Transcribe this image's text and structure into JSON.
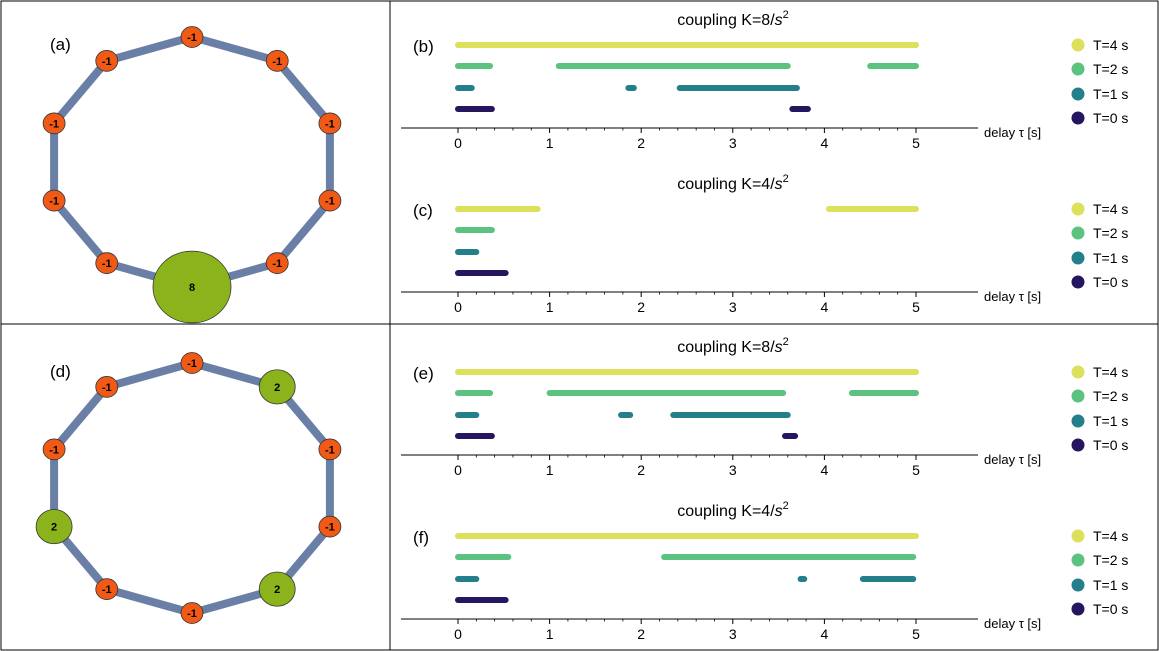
{
  "colors": {
    "T4": "#dde05a",
    "T2": "#5cc27f",
    "T1": "#23808a",
    "T0": "#261660",
    "edge": "#6a7fa6",
    "node_negative": "#f05a16",
    "node_positive": "#8bb31c",
    "node_stroke": "#333333",
    "frame": "#000000"
  },
  "panels": {
    "a": {
      "label": "(a)",
      "node_values": [
        "-1",
        "-1",
        "-1",
        "-1",
        "-1",
        "8",
        "-1",
        "-1",
        "-1",
        "-1"
      ]
    },
    "d": {
      "label": "(d)",
      "node_values": [
        "-1",
        "2",
        "-1",
        "-1",
        "2",
        "-1",
        "-1",
        "2",
        "-1",
        "-1"
      ]
    }
  },
  "chart_data": [
    {
      "panel": "(b)",
      "type": "range-bar",
      "title_main": "coupling K=8/",
      "title_unit": "s",
      "title_exp": "2",
      "xlabel": "delay τ [s]",
      "xlim": [
        0,
        5
      ],
      "xticks": [
        "0",
        "1",
        "2",
        "3",
        "4",
        "5"
      ],
      "legend": [
        "T=4 s",
        "T=2 s",
        "T=1 s",
        "T=0 s"
      ],
      "series": [
        {
          "name": "T=4 s",
          "intervals": [
            [
              0,
              5
            ]
          ]
        },
        {
          "name": "T=2 s",
          "intervals": [
            [
              0,
              0.35
            ],
            [
              1.1,
              3.6
            ],
            [
              4.5,
              5
            ]
          ]
        },
        {
          "name": "T=1 s",
          "intervals": [
            [
              0,
              0.15
            ],
            [
              1.86,
              1.92
            ],
            [
              2.42,
              3.7
            ]
          ]
        },
        {
          "name": "T=0 s",
          "intervals": [
            [
              0,
              0.37
            ],
            [
              3.65,
              3.82
            ]
          ]
        }
      ]
    },
    {
      "panel": "(c)",
      "type": "range-bar",
      "title_main": "coupling K=4/",
      "title_unit": "s",
      "title_exp": "2",
      "xlabel": "delay τ [s]",
      "xlim": [
        0,
        5
      ],
      "xticks": [
        "0",
        "1",
        "2",
        "3",
        "4",
        "5"
      ],
      "legend": [
        "T=4 s",
        "T=2 s",
        "T=1 s",
        "T=0 s"
      ],
      "series": [
        {
          "name": "T=4 s",
          "intervals": [
            [
              0,
              0.87
            ],
            [
              4.05,
              5
            ]
          ]
        },
        {
          "name": "T=2 s",
          "intervals": [
            [
              0,
              0.37
            ]
          ]
        },
        {
          "name": "T=1 s",
          "intervals": [
            [
              0,
              0.2
            ]
          ]
        },
        {
          "name": "T=0 s",
          "intervals": [
            [
              0,
              0.52
            ]
          ]
        }
      ]
    },
    {
      "panel": "(e)",
      "type": "range-bar",
      "title_main": "coupling K=8/",
      "title_unit": "s",
      "title_exp": "2",
      "xlabel": "delay τ [s]",
      "xlim": [
        0,
        5
      ],
      "xticks": [
        "0",
        "1",
        "2",
        "3",
        "4",
        "5"
      ],
      "legend": [
        "T=4 s",
        "T=2 s",
        "T=1 s",
        "T=0 s"
      ],
      "series": [
        {
          "name": "T=4 s",
          "intervals": [
            [
              0,
              5
            ]
          ]
        },
        {
          "name": "T=2 s",
          "intervals": [
            [
              0,
              0.35
            ],
            [
              1,
              3.55
            ],
            [
              4.3,
              5
            ]
          ]
        },
        {
          "name": "T=1 s",
          "intervals": [
            [
              0,
              0.2
            ],
            [
              1.78,
              1.88
            ],
            [
              2.35,
              3.6
            ]
          ]
        },
        {
          "name": "T=0 s",
          "intervals": [
            [
              0,
              0.37
            ],
            [
              3.57,
              3.68
            ]
          ]
        }
      ]
    },
    {
      "panel": "(f)",
      "type": "range-bar",
      "title_main": "coupling K=4/",
      "title_unit": "s",
      "title_exp": "2",
      "xlabel": "delay τ [s]",
      "xlim": [
        0,
        5
      ],
      "xticks": [
        "0",
        "1",
        "2",
        "3",
        "4",
        "5"
      ],
      "legend": [
        "T=4 s",
        "T=2 s",
        "T=1 s",
        "T=0 s"
      ],
      "series": [
        {
          "name": "T=4 s",
          "intervals": [
            [
              0,
              5
            ]
          ]
        },
        {
          "name": "T=2 s",
          "intervals": [
            [
              0,
              0.55
            ],
            [
              2.25,
              4.97
            ]
          ]
        },
        {
          "name": "T=1 s",
          "intervals": [
            [
              0,
              0.2
            ],
            [
              3.74,
              3.78
            ],
            [
              4.42,
              4.97
            ]
          ]
        },
        {
          "name": "T=0 s",
          "intervals": [
            [
              0,
              0.52
            ]
          ]
        }
      ]
    }
  ]
}
